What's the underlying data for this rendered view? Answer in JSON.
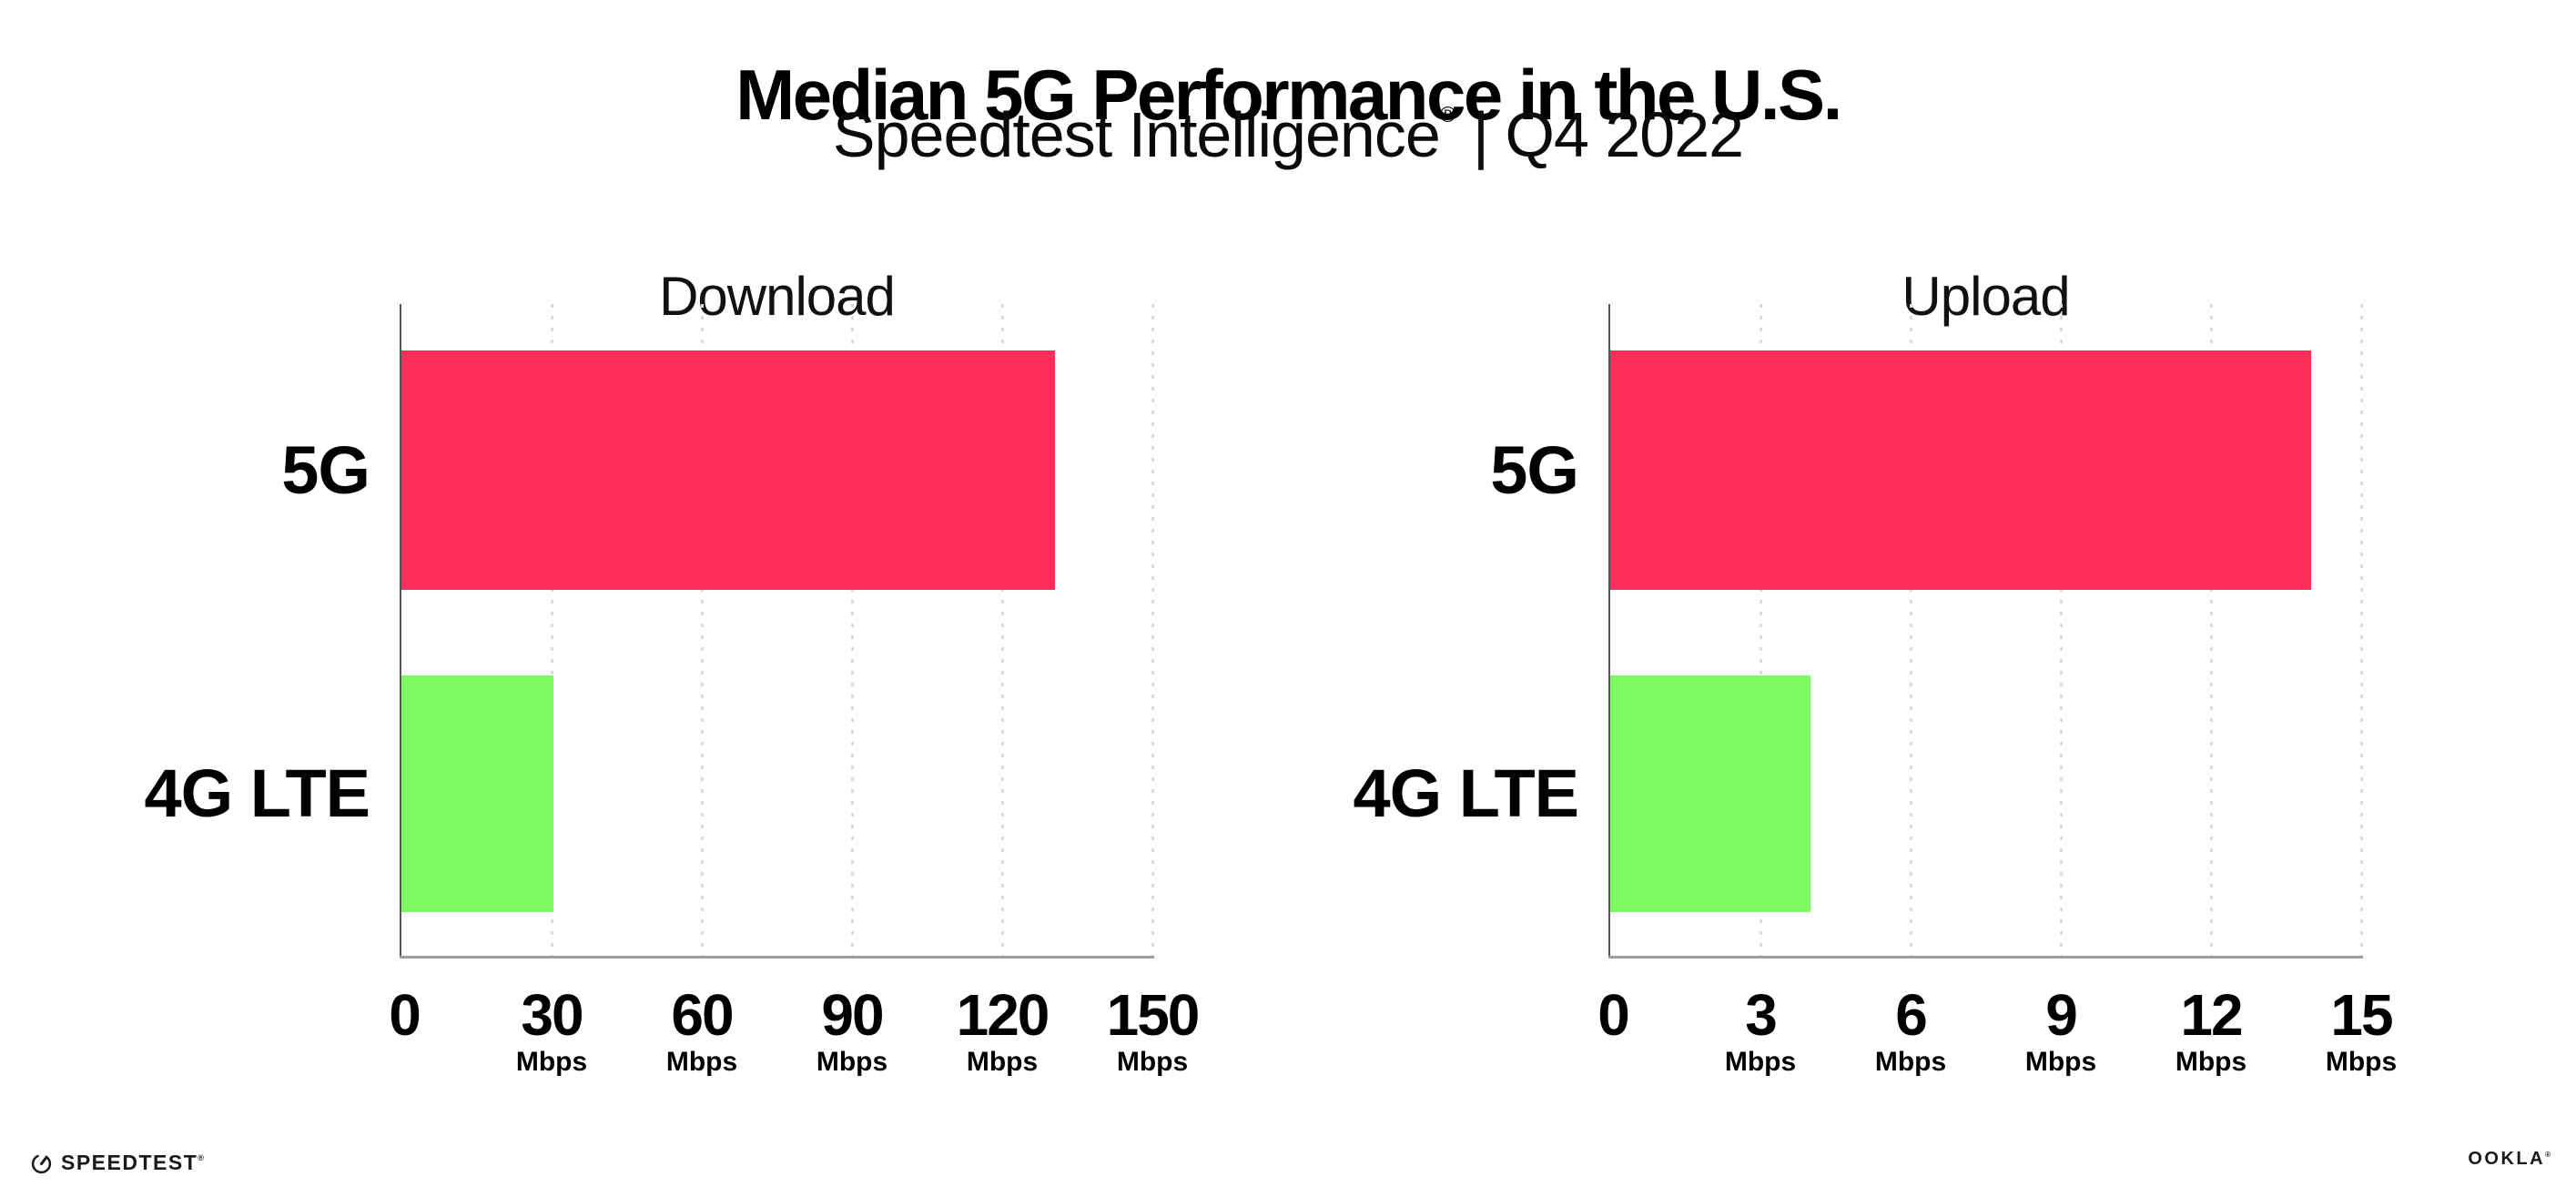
{
  "page": {
    "title": "Median 5G Performance in the U.S.",
    "subtitle": {
      "brand": "Speedtest Intelligence",
      "registered": "®",
      "period": "| Q4 2022"
    }
  },
  "chart_data": [
    {
      "type": "bar",
      "orientation": "horizontal",
      "title": "Download",
      "categories": [
        "5G",
        "4G LTE"
      ],
      "values": [
        130.5,
        30.4
      ],
      "unit": "Mbps",
      "xlim": [
        0,
        150
      ],
      "xticks": [
        0,
        30,
        60,
        90,
        120,
        150
      ],
      "xtick_unit": "Mbps",
      "bar_colors": [
        "#FF2E5B",
        "#7DFA64"
      ],
      "grid": "dotted vertical gridline at each tick",
      "legend": "none"
    },
    {
      "type": "bar",
      "orientation": "horizontal",
      "title": "Upload",
      "categories": [
        "5G",
        "4G LTE"
      ],
      "values": [
        14,
        4
      ],
      "unit": "Mbps",
      "xlim": [
        0,
        15
      ],
      "xticks": [
        0,
        3,
        6,
        9,
        12,
        15
      ],
      "xtick_unit": "Mbps",
      "bar_colors": [
        "#FF2E5B",
        "#7DFA64"
      ],
      "grid": "dotted vertical gridline at each tick",
      "legend": "none"
    }
  ],
  "footer": {
    "speedtest_label": "SPEEDTEST",
    "speedtest_registered": "®",
    "ookla_label": "OOKLA",
    "ookla_registered": "®"
  },
  "colors": {
    "bar_5g": "#FF2E5B",
    "bar_4g_lte": "#7DFA64",
    "gridline": "#D8DBE4",
    "x_axis": "#9B9EA3",
    "y_axis": "#56585C",
    "text": "#000000",
    "chart_title": "#111111",
    "background": "#FFFFFF"
  }
}
